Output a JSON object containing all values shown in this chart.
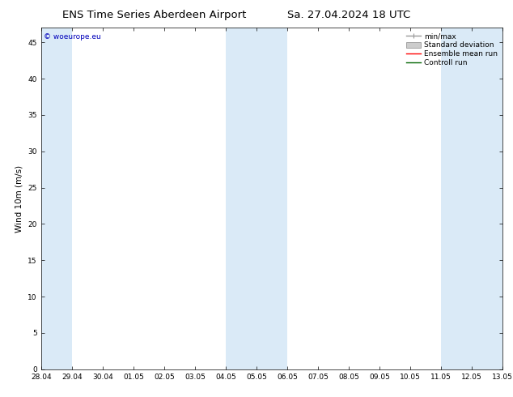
{
  "title_left": "ENS Time Series Aberdeen Airport",
  "title_right": "Sa. 27.04.2024 18 UTC",
  "ylabel": "Wind 10m (m/s)",
  "watermark": "© woeurope.eu",
  "ylim": [
    0,
    47
  ],
  "yticks": [
    0,
    5,
    10,
    15,
    20,
    25,
    30,
    35,
    40,
    45
  ],
  "xtick_labels": [
    "28.04",
    "29.04",
    "30.04",
    "01.05",
    "02.05",
    "03.05",
    "04.05",
    "05.05",
    "06.05",
    "07.05",
    "08.05",
    "09.05",
    "10.05",
    "11.05",
    "12.05",
    "13.05"
  ],
  "bg_color": "#ffffff",
  "plot_bg_color": "#ffffff",
  "shade_color": "#daeaf7",
  "shade_bands": [
    {
      "start": 0,
      "end": 1
    },
    {
      "start": 6,
      "end": 8
    },
    {
      "start": 13,
      "end": 15
    }
  ],
  "legend_entries": [
    {
      "label": "min/max",
      "color": "#999999",
      "lw": 1.0,
      "style": "minmax"
    },
    {
      "label": "Standard deviation",
      "color": "#cccccc",
      "lw": 6,
      "style": "band"
    },
    {
      "label": "Ensemble mean run",
      "color": "#ff0000",
      "lw": 1.0,
      "style": "line"
    },
    {
      "label": "Controll run",
      "color": "#006400",
      "lw": 1.0,
      "style": "line"
    }
  ],
  "title_fontsize": 9.5,
  "axis_fontsize": 6.5,
  "ylabel_fontsize": 7.5,
  "legend_fontsize": 6.5,
  "watermark_color": "#0000bb",
  "watermark_fontsize": 6.5
}
